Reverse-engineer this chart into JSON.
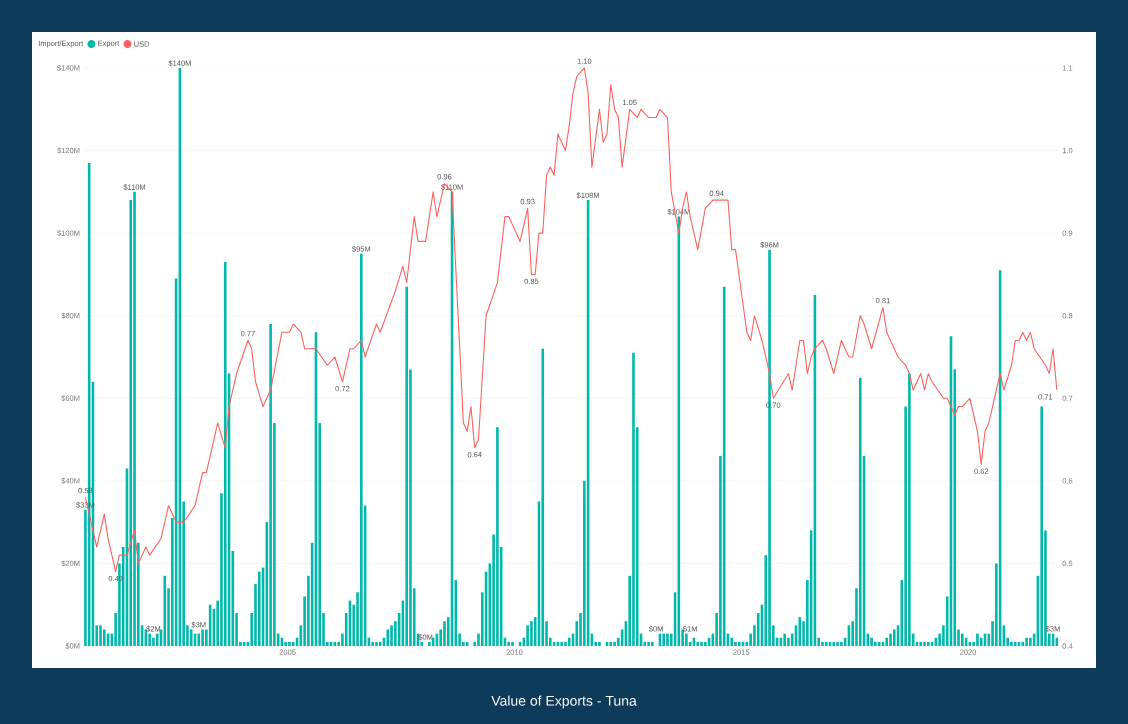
{
  "chart_data": {
    "type": "bar",
    "title": "Value of Exports - Tuna",
    "legend_title": "Import/Export",
    "legend": "top left",
    "grid": "y",
    "x": [
      "2000-07",
      "2000-08",
      "2000-09",
      "2000-10",
      "2000-11",
      "2000-12",
      "2001-01",
      "2001-02",
      "2001-03",
      "2001-04",
      "2001-05",
      "2001-06",
      "2001-07",
      "2001-08",
      "2001-09",
      "2001-10",
      "2001-11",
      "2001-12",
      "2002-01",
      "2002-02",
      "2002-03",
      "2002-04",
      "2002-05",
      "2002-06",
      "2002-07",
      "2002-08",
      "2002-09",
      "2002-10",
      "2002-11",
      "2002-12",
      "2003-01",
      "2003-02",
      "2003-03",
      "2003-04",
      "2003-05",
      "2003-06",
      "2003-07",
      "2003-08",
      "2003-09",
      "2003-10",
      "2003-11",
      "2003-12",
      "2004-01",
      "2004-02",
      "2004-03",
      "2004-04",
      "2004-05",
      "2004-06",
      "2004-07",
      "2004-08",
      "2004-09",
      "2004-10",
      "2004-11",
      "2004-12",
      "2005-01",
      "2005-02",
      "2005-03",
      "2005-04",
      "2005-05",
      "2005-06",
      "2005-07",
      "2005-08",
      "2005-09",
      "2005-10",
      "2005-11",
      "2005-12",
      "2006-01",
      "2006-02",
      "2006-03",
      "2006-04",
      "2006-05",
      "2006-06",
      "2006-07",
      "2006-08",
      "2006-09",
      "2006-10",
      "2006-11",
      "2006-12",
      "2007-01",
      "2007-02",
      "2007-03",
      "2007-04",
      "2007-05",
      "2007-06",
      "2007-07",
      "2007-08",
      "2007-09",
      "2007-10",
      "2007-11",
      "2007-12",
      "2008-01",
      "2008-02",
      "2008-03",
      "2008-04",
      "2008-05",
      "2008-06",
      "2008-07",
      "2008-08",
      "2008-09",
      "2008-10",
      "2008-11",
      "2008-12",
      "2009-01",
      "2009-02",
      "2009-03",
      "2009-04",
      "2009-05",
      "2009-06",
      "2009-07",
      "2009-08",
      "2009-09",
      "2009-10",
      "2009-11",
      "2009-12",
      "2010-01",
      "2010-02",
      "2010-03",
      "2010-04",
      "2010-05",
      "2010-06",
      "2010-07",
      "2010-08",
      "2010-09",
      "2010-10",
      "2010-11",
      "2010-12",
      "2011-01",
      "2011-02",
      "2011-03",
      "2011-04",
      "2011-05",
      "2011-06",
      "2011-07",
      "2011-08",
      "2011-09",
      "2011-10",
      "2011-11",
      "2011-12",
      "2012-01",
      "2012-02",
      "2012-03",
      "2012-04",
      "2012-05",
      "2012-06",
      "2012-07",
      "2012-08",
      "2012-09",
      "2012-10",
      "2012-11",
      "2012-12",
      "2013-01",
      "2013-02",
      "2013-03",
      "2013-04",
      "2013-05",
      "2013-06",
      "2013-07",
      "2013-08",
      "2013-09",
      "2013-10",
      "2013-11",
      "2013-12",
      "2014-01",
      "2014-02",
      "2014-03",
      "2014-04",
      "2014-05",
      "2014-06",
      "2014-07",
      "2014-08",
      "2014-09",
      "2014-10",
      "2014-11",
      "2014-12",
      "2015-01",
      "2015-02",
      "2015-03",
      "2015-04",
      "2015-05",
      "2015-06",
      "2015-07",
      "2015-08",
      "2015-09",
      "2015-10",
      "2015-11",
      "2015-12",
      "2016-01",
      "2016-02",
      "2016-03",
      "2016-04",
      "2016-05",
      "2016-06",
      "2016-07",
      "2016-08",
      "2016-09",
      "2016-10",
      "2016-11",
      "2016-12",
      "2017-01",
      "2017-02",
      "2017-03",
      "2017-04",
      "2017-05",
      "2017-06",
      "2017-07",
      "2017-08",
      "2017-09",
      "2017-10",
      "2017-11",
      "2017-12",
      "2018-01",
      "2018-02",
      "2018-03",
      "2018-04",
      "2018-05",
      "2018-06",
      "2018-07",
      "2018-08",
      "2018-09",
      "2018-10",
      "2018-11",
      "2018-12",
      "2019-01",
      "2019-02",
      "2019-03",
      "2019-04",
      "2019-05",
      "2019-06",
      "2019-07",
      "2019-08",
      "2019-09",
      "2019-10",
      "2019-11",
      "2019-12",
      "2020-01",
      "2020-02",
      "2020-03",
      "2020-04",
      "2020-05",
      "2020-06",
      "2020-07",
      "2020-08",
      "2020-09",
      "2020-10",
      "2020-11",
      "2020-12",
      "2021-01",
      "2021-02",
      "2021-03",
      "2021-04",
      "2021-05",
      "2021-06",
      "2021-07",
      "2021-08",
      "2021-09",
      "2021-10",
      "2021-11",
      "2021-12"
    ],
    "xlim": [
      "2000-07-01",
      "2022-01-01"
    ],
    "xticks": [
      "2005",
      "2010",
      "2015",
      "2020"
    ],
    "ylim": [
      0,
      140
    ],
    "yticks": [
      {
        "value": 0,
        "label": "$0M"
      },
      {
        "value": 20,
        "label": "$20M"
      },
      {
        "value": 40,
        "label": "$40M"
      },
      {
        "value": 60,
        "label": "$60M"
      },
      {
        "value": 80,
        "label": "$80M"
      },
      {
        "value": 100,
        "label": "$100M"
      },
      {
        "value": 120,
        "label": "$120M"
      },
      {
        "value": 140,
        "label": "$140M"
      }
    ],
    "y2lim": [
      0.4,
      1.1
    ],
    "y2ticks": [
      0.4,
      0.5,
      0.6,
      0.7,
      0.8,
      0.9,
      {
        "value": 1,
        "label": "1.0"
      },
      1.1
    ],
    "series": [
      {
        "name": "Export",
        "type": "bar",
        "color": "#01b8aa",
        "values": [
          33,
          117,
          64,
          5,
          5,
          4,
          3,
          3,
          8,
          20,
          24,
          43,
          108,
          110,
          25,
          5,
          4,
          3,
          2,
          3,
          4,
          17,
          14,
          31,
          89,
          140,
          35,
          5,
          4,
          3,
          3,
          4,
          4,
          10,
          9,
          11,
          37,
          93,
          66,
          23,
          8,
          1,
          1,
          1,
          8,
          15,
          18,
          19,
          30,
          78,
          54,
          3,
          2,
          1,
          1,
          1,
          2,
          5,
          12,
          17,
          25,
          76,
          54,
          8,
          1,
          1,
          1,
          1,
          3,
          8,
          11,
          10,
          13,
          95,
          34,
          2,
          1,
          1,
          1,
          2,
          4,
          5,
          6,
          8,
          11,
          87,
          67,
          14,
          3,
          1,
          0,
          1,
          2,
          3,
          4,
          6,
          7,
          110,
          16,
          3,
          1,
          1,
          0,
          1,
          3,
          13,
          18,
          20,
          27,
          53,
          24,
          2,
          1,
          1,
          0,
          1,
          2,
          5,
          6,
          7,
          35,
          72,
          6,
          2,
          1,
          1,
          1,
          1,
          2,
          3,
          6,
          8,
          40,
          108,
          3,
          1,
          1,
          0,
          1,
          1,
          1,
          2,
          4,
          6,
          17,
          71,
          53,
          3,
          1,
          1,
          1,
          0,
          3,
          3,
          3,
          3,
          13,
          104,
          4,
          3,
          1,
          2,
          1,
          1,
          1,
          2,
          3,
          8,
          46,
          87,
          3,
          2,
          1,
          1,
          1,
          1,
          3,
          5,
          8,
          10,
          22,
          96,
          5,
          2,
          2,
          3,
          2,
          3,
          5,
          7,
          6,
          16,
          28,
          85,
          2,
          1,
          1,
          1,
          1,
          1,
          1,
          2,
          5,
          6,
          14,
          65,
          46,
          3,
          2,
          1,
          1,
          1,
          2,
          3,
          4,
          5,
          16,
          58,
          66,
          3,
          1,
          1,
          1,
          1,
          1,
          2,
          3,
          5,
          12,
          75,
          67,
          4,
          3,
          2,
          1,
          1,
          3,
          2,
          3,
          3,
          6,
          20,
          91,
          5,
          2,
          1,
          1,
          1,
          1,
          2,
          2,
          3,
          17,
          58,
          28,
          3,
          3,
          2
        ],
        "value_labels": [
          "$33M",
          null,
          null,
          null,
          null,
          null,
          null,
          null,
          null,
          null,
          null,
          null,
          null,
          "$110M",
          null,
          null,
          null,
          null,
          "$2M",
          null,
          null,
          null,
          null,
          null,
          null,
          "$140M",
          null,
          null,
          null,
          null,
          "$3M",
          null,
          null,
          null,
          null,
          null,
          null,
          null,
          null,
          null,
          null,
          null,
          null,
          null,
          null,
          null,
          null,
          null,
          null,
          null,
          null,
          null,
          null,
          null,
          null,
          null,
          null,
          null,
          null,
          null,
          null,
          null,
          null,
          null,
          null,
          null,
          null,
          null,
          null,
          null,
          null,
          null,
          null,
          "$95M",
          null,
          null,
          null,
          null,
          null,
          null,
          null,
          null,
          null,
          null,
          null,
          null,
          null,
          null,
          null,
          null,
          "$0M",
          null,
          null,
          null,
          null,
          null,
          null,
          "$110M",
          null,
          null,
          null,
          null,
          null,
          null,
          null,
          null,
          null,
          null,
          null,
          null,
          null,
          null,
          null,
          null,
          null,
          null,
          null,
          null,
          null,
          null,
          null,
          null,
          null,
          null,
          null,
          null,
          null,
          null,
          null,
          null,
          null,
          null,
          null,
          "$108M",
          null,
          null,
          null,
          null,
          null,
          null,
          null,
          null,
          null,
          null,
          null,
          null,
          null,
          null,
          null,
          null,
          null,
          "$0M",
          null,
          null,
          null,
          null,
          null,
          "$104M",
          null,
          null,
          "$1M",
          null,
          null,
          null,
          null,
          null,
          null,
          null,
          null,
          null,
          null,
          null,
          null,
          null,
          null,
          null,
          null,
          null,
          null,
          null,
          null,
          "$96M",
          null,
          null,
          null,
          null,
          null,
          null,
          null,
          null,
          null,
          null,
          null,
          null,
          null,
          null,
          null,
          null,
          null,
          null,
          null,
          null,
          null,
          null,
          null,
          null,
          null,
          null,
          null,
          null,
          null,
          null,
          null,
          null,
          null,
          null,
          null,
          null,
          null,
          null,
          null,
          null,
          null,
          null,
          null,
          null,
          null,
          null,
          null,
          null,
          null,
          null,
          null,
          null,
          null,
          null,
          null,
          null,
          null,
          null,
          null,
          null,
          null,
          null,
          null,
          null,
          null,
          null,
          null,
          null,
          null,
          null,
          null,
          null,
          null,
          null,
          "$3M",
          null
        ]
      },
      {
        "name": "USD",
        "type": "line",
        "axis": "y2",
        "color": "#fd625e",
        "x": [
          "2000-07",
          "2000-10",
          "2000-12",
          "2001-01",
          "2001-03",
          "2001-04",
          "2001-06",
          "2001-08",
          "2001-09",
          "2001-11",
          "2001-12",
          "2002-03",
          "2002-05",
          "2002-07",
          "2002-09",
          "2002-12",
          "2003-02",
          "2003-03",
          "2003-06",
          "2003-08",
          "2003-09",
          "2003-11",
          "2004-02",
          "2004-03",
          "2004-04",
          "2004-06",
          "2004-08",
          "2004-11",
          "2005-01",
          "2005-02",
          "2005-04",
          "2005-05",
          "2005-08",
          "2005-11",
          "2006-01",
          "2006-03",
          "2006-05",
          "2006-06",
          "2006-08",
          "2006-09",
          "2006-12",
          "2007-01",
          "2007-05",
          "2007-07",
          "2007-08",
          "2007-10",
          "2007-11",
          "2007-12",
          "2008-01",
          "2008-03",
          "2008-04",
          "2008-05",
          "2008-06",
          "2008-08",
          "2008-11",
          "2008-12",
          "2009-01",
          "2009-02",
          "2009-03",
          "2009-05",
          "2009-08",
          "2009-10",
          "2009-11",
          "2010-01",
          "2010-02",
          "2010-04",
          "2010-05",
          "2010-06",
          "2010-07",
          "2010-08",
          "2010-09",
          "2010-10",
          "2010-11",
          "2010-12",
          "2011-02",
          "2011-03",
          "2011-04",
          "2011-05",
          "2011-07",
          "2011-08",
          "2011-09",
          "2011-11",
          "2011-12",
          "2012-01",
          "2012-02",
          "2012-03",
          "2012-04",
          "2012-05",
          "2012-07",
          "2012-09",
          "2012-10",
          "2012-12",
          "2013-02",
          "2013-03",
          "2013-05",
          "2013-06",
          "2013-08",
          "2013-09",
          "2013-10",
          "2013-11",
          "2014-01",
          "2014-03",
          "2014-05",
          "2014-06",
          "2014-08",
          "2014-09",
          "2014-10",
          "2014-11",
          "2015-02",
          "2015-03",
          "2015-04",
          "2015-06",
          "2015-08",
          "2015-09",
          "2016-01",
          "2016-02",
          "2016-04",
          "2016-05",
          "2016-06",
          "2016-07",
          "2016-08",
          "2016-10",
          "2016-11",
          "2017-01",
          "2017-03",
          "2017-04",
          "2017-05",
          "2017-06",
          "2017-08",
          "2017-09",
          "2017-11",
          "2018-02",
          "2018-03",
          "2018-05",
          "2018-06",
          "2018-08",
          "2018-09",
          "2018-10",
          "2018-12",
          "2019-01",
          "2019-02",
          "2019-03",
          "2019-06",
          "2019-07",
          "2019-09",
          "2019-10",
          "2019-11",
          "2020-01",
          "2020-03",
          "2020-04",
          "2020-05",
          "2020-06",
          "2020-08",
          "2020-09",
          "2020-10",
          "2020-12",
          "2021-01",
          "2021-02",
          "2021-03",
          "2021-04",
          "2021-05",
          "2021-06",
          "2021-09",
          "2021-10",
          "2021-11",
          "2021-12"
        ],
        "values": [
          0.58,
          0.52,
          0.56,
          0.53,
          0.49,
          0.51,
          0.51,
          0.54,
          0.5,
          0.52,
          0.51,
          0.53,
          0.57,
          0.55,
          0.55,
          0.57,
          0.61,
          0.61,
          0.67,
          0.64,
          0.69,
          0.73,
          0.77,
          0.76,
          0.72,
          0.69,
          0.71,
          0.78,
          0.78,
          0.79,
          0.78,
          0.76,
          0.76,
          0.74,
          0.75,
          0.72,
          0.76,
          0.76,
          0.77,
          0.75,
          0.79,
          0.78,
          0.83,
          0.86,
          0.84,
          0.92,
          0.89,
          0.89,
          0.89,
          0.95,
          0.92,
          0.94,
          0.96,
          0.95,
          0.67,
          0.66,
          0.69,
          0.64,
          0.65,
          0.8,
          0.84,
          0.92,
          0.92,
          0.9,
          0.89,
          0.93,
          0.85,
          0.85,
          0.9,
          0.9,
          0.97,
          0.98,
          0.97,
          1.02,
          1.0,
          1.03,
          1.07,
          1.09,
          1.1,
          1.07,
          0.98,
          1.05,
          1.01,
          1.02,
          1.08,
          1.05,
          1.04,
          0.98,
          1.05,
          1.04,
          1.05,
          1.04,
          1.04,
          1.05,
          1.04,
          0.95,
          0.9,
          0.93,
          0.95,
          0.92,
          0.88,
          0.93,
          0.94,
          0.94,
          0.94,
          0.94,
          0.88,
          0.88,
          0.78,
          0.77,
          0.8,
          0.77,
          0.73,
          0.7,
          0.73,
          0.71,
          0.77,
          0.77,
          0.73,
          0.75,
          0.76,
          0.77,
          0.76,
          0.73,
          0.77,
          0.76,
          0.75,
          0.75,
          0.8,
          0.79,
          0.76,
          0.81,
          0.78,
          0.76,
          0.75,
          0.74,
          0.73,
          0.71,
          0.73,
          0.71,
          0.73,
          0.72,
          0.7,
          0.7,
          0.68,
          0.69,
          0.69,
          0.7,
          0.66,
          0.62,
          0.66,
          0.67,
          0.71,
          0.73,
          0.71,
          0.74,
          0.77,
          0.77,
          0.78,
          0.77,
          0.78,
          0.76,
          0.74,
          0.73,
          0.76,
          0.71
        ],
        "value_labels": [
          "0.58",
          null,
          null,
          null,
          "0.49",
          null,
          null,
          null,
          null,
          null,
          null,
          null,
          null,
          null,
          null,
          null,
          null,
          null,
          null,
          null,
          null,
          null,
          "0.77",
          null,
          null,
          null,
          null,
          null,
          null,
          null,
          null,
          null,
          null,
          null,
          null,
          "0.72",
          null,
          null,
          null,
          null,
          null,
          null,
          null,
          null,
          null,
          null,
          null,
          null,
          null,
          null,
          null,
          null,
          "0.96",
          null,
          null,
          null,
          null,
          "0.64",
          null,
          null,
          null,
          null,
          null,
          null,
          null,
          "0.93",
          "0.85",
          null,
          null,
          null,
          null,
          null,
          null,
          null,
          null,
          null,
          null,
          null,
          "1.10",
          null,
          null,
          null,
          null,
          null,
          null,
          null,
          null,
          null,
          "1.05",
          null,
          null,
          null,
          null,
          null,
          null,
          null,
          null,
          null,
          null,
          null,
          null,
          null,
          null,
          "0.94",
          null,
          null,
          null,
          null,
          null,
          null,
          null,
          null,
          null,
          "0.70",
          null,
          null,
          null,
          null,
          null,
          null,
          null,
          null,
          null,
          null,
          null,
          null,
          null,
          null,
          null,
          null,
          null,
          "0.81",
          null,
          null,
          null,
          null,
          null,
          null,
          null,
          null,
          null,
          null,
          null,
          null,
          null,
          null,
          null,
          null,
          null,
          "0.62",
          null,
          null,
          null,
          null,
          null,
          null,
          null,
          null,
          null,
          null,
          null,
          null,
          null,
          null,
          null,
          "0.71"
        ]
      }
    ]
  }
}
